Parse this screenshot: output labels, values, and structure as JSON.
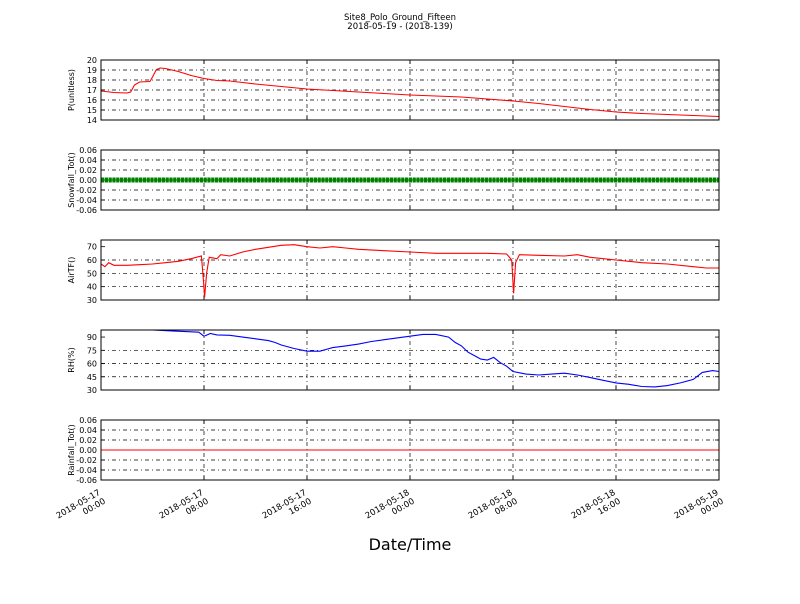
{
  "chart_data": {
    "type": "line",
    "title": "Site8_Polo_Ground_Fifteen",
    "subtitle": "2018-05-19 - (2018-139)",
    "xlabel": "Date/Time",
    "x_ticks": [
      {
        "t": 0,
        "line1": "2018-05-17",
        "line2": "00:00"
      },
      {
        "t": 8,
        "line1": "2018-05-17",
        "line2": "08:00"
      },
      {
        "t": 16,
        "line1": "2018-05-17",
        "line2": "16:00"
      },
      {
        "t": 24,
        "line1": "2018-05-18",
        "line2": "00:00"
      },
      {
        "t": 32,
        "line1": "2018-05-18",
        "line2": "08:00"
      },
      {
        "t": 40,
        "line1": "2018-05-18",
        "line2": "16:00"
      },
      {
        "t": 48,
        "line1": "2018-05-19",
        "line2": "00:00"
      }
    ],
    "xlim": [
      0,
      48
    ],
    "grid": true,
    "panels": [
      {
        "ylabel": "P(unitless)",
        "ylim": [
          14,
          20
        ],
        "yticks": [
          14,
          15,
          16,
          17,
          18,
          19,
          20
        ],
        "tick_decimals": 0,
        "color": "#ff0000",
        "points": [
          [
            0,
            16.9
          ],
          [
            1,
            16.75
          ],
          [
            2,
            16.7
          ],
          [
            2.3,
            16.8
          ],
          [
            2.6,
            17.5
          ],
          [
            3,
            17.8
          ],
          [
            3.8,
            17.85
          ],
          [
            4,
            18.3
          ],
          [
            4.3,
            19.05
          ],
          [
            4.6,
            19.2
          ],
          [
            5,
            19.15
          ],
          [
            5.5,
            19
          ],
          [
            6,
            18.85
          ],
          [
            7,
            18.45
          ],
          [
            8,
            18.15
          ],
          [
            9,
            17.95
          ],
          [
            10,
            17.9
          ],
          [
            11,
            17.75
          ],
          [
            12,
            17.6
          ],
          [
            14,
            17.35
          ],
          [
            16,
            17.1
          ],
          [
            18,
            16.95
          ],
          [
            20,
            16.8
          ],
          [
            22,
            16.65
          ],
          [
            24,
            16.5
          ],
          [
            26,
            16.4
          ],
          [
            28,
            16.3
          ],
          [
            30,
            16.1
          ],
          [
            32,
            15.9
          ],
          [
            34,
            15.65
          ],
          [
            36,
            15.35
          ],
          [
            38,
            15.05
          ],
          [
            40,
            14.8
          ],
          [
            42,
            14.65
          ],
          [
            44,
            14.55
          ],
          [
            46,
            14.45
          ],
          [
            48,
            14.35
          ]
        ]
      },
      {
        "ylabel": "Snowfall_Tot()",
        "ylim": [
          -0.06,
          0.06
        ],
        "yticks": [
          -0.06,
          -0.04,
          -0.02,
          0.0,
          0.02,
          0.04,
          0.06
        ],
        "tick_decimals": 2,
        "color": "#008000",
        "markers": true,
        "points": [
          [
            0,
            0
          ],
          [
            48,
            0
          ]
        ]
      },
      {
        "ylabel": "AirTF()",
        "ylim": [
          30,
          75
        ],
        "yticks": [
          30,
          40,
          50,
          60,
          70
        ],
        "tick_decimals": 0,
        "color": "#ff0000",
        "points": [
          [
            0,
            57
          ],
          [
            0.3,
            55
          ],
          [
            0.6,
            58
          ],
          [
            1,
            56
          ],
          [
            2,
            56
          ],
          [
            3,
            56.5
          ],
          [
            4,
            57
          ],
          [
            5,
            58
          ],
          [
            6,
            59
          ],
          [
            7,
            61
          ],
          [
            7.8,
            63
          ],
          [
            7.95,
            45
          ],
          [
            8.05,
            32
          ],
          [
            8.2,
            50
          ],
          [
            8.4,
            62
          ],
          [
            9,
            61
          ],
          [
            9.3,
            64
          ],
          [
            10,
            63
          ],
          [
            11,
            66
          ],
          [
            12,
            68
          ],
          [
            13,
            69.5
          ],
          [
            14,
            71
          ],
          [
            15,
            71.5
          ],
          [
            16,
            70
          ],
          [
            17,
            69
          ],
          [
            18,
            70
          ],
          [
            19,
            69
          ],
          [
            20,
            68
          ],
          [
            22,
            67
          ],
          [
            24,
            66
          ],
          [
            26,
            65
          ],
          [
            28,
            65
          ],
          [
            30,
            65
          ],
          [
            31.5,
            64.5
          ],
          [
            31.9,
            60
          ],
          [
            32.05,
            35
          ],
          [
            32.2,
            58
          ],
          [
            32.5,
            64
          ],
          [
            34,
            63.5
          ],
          [
            36,
            63
          ],
          [
            37,
            64
          ],
          [
            38,
            62
          ],
          [
            40,
            60
          ],
          [
            42,
            58
          ],
          [
            44,
            57
          ],
          [
            46,
            55
          ],
          [
            47,
            54
          ],
          [
            48,
            54
          ]
        ]
      },
      {
        "ylabel": "RH(%)",
        "ylim": [
          30,
          98
        ],
        "yticks": [
          30,
          45,
          60,
          75,
          90
        ],
        "tick_decimals": 0,
        "color": "#0000ff",
        "points": [
          [
            4,
            98
          ],
          [
            5.5,
            97
          ],
          [
            7,
            96
          ],
          [
            7.6,
            95.5
          ],
          [
            8,
            91
          ],
          [
            8.5,
            94
          ],
          [
            9,
            92.5
          ],
          [
            10,
            92
          ],
          [
            11,
            90
          ],
          [
            12,
            88
          ],
          [
            13,
            86
          ],
          [
            13.5,
            84
          ],
          [
            14,
            81
          ],
          [
            15,
            77
          ],
          [
            16,
            74
          ],
          [
            17,
            74
          ],
          [
            17.5,
            76
          ],
          [
            18,
            78
          ],
          [
            19,
            80
          ],
          [
            20,
            82
          ],
          [
            21,
            85
          ],
          [
            22,
            87
          ],
          [
            23,
            89
          ],
          [
            24,
            91
          ],
          [
            25,
            93
          ],
          [
            26,
            93
          ],
          [
            27,
            90
          ],
          [
            27.5,
            84
          ],
          [
            28,
            80
          ],
          [
            28.5,
            73
          ],
          [
            29,
            69
          ],
          [
            29.5,
            65
          ],
          [
            30,
            64
          ],
          [
            30.5,
            67
          ],
          [
            31,
            61
          ],
          [
            31.5,
            57
          ],
          [
            32,
            51
          ],
          [
            33,
            48
          ],
          [
            34,
            47
          ],
          [
            35,
            48
          ],
          [
            36,
            49
          ],
          [
            37,
            47
          ],
          [
            38,
            44
          ],
          [
            39,
            41
          ],
          [
            40,
            38
          ],
          [
            41,
            36.5
          ],
          [
            42,
            34
          ],
          [
            43,
            33.5
          ],
          [
            44,
            35
          ],
          [
            45,
            38
          ],
          [
            46,
            42
          ],
          [
            46.7,
            50
          ],
          [
            47.5,
            52
          ],
          [
            48,
            51
          ]
        ]
      },
      {
        "ylabel": "Rainfall_Tot()",
        "ylim": [
          -0.06,
          0.06
        ],
        "yticks": [
          -0.06,
          -0.04,
          -0.02,
          0.0,
          0.02,
          0.04,
          0.06
        ],
        "tick_decimals": 2,
        "color": "#ff0000",
        "points": [
          [
            0,
            0
          ],
          [
            48,
            0
          ]
        ]
      }
    ]
  }
}
